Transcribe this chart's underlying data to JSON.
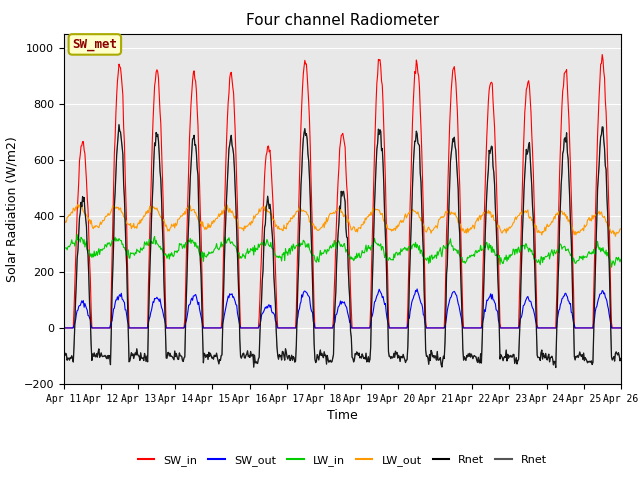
{
  "title": "Four channel Radiometer",
  "xlabel": "Time",
  "ylabel": "Solar Radiation (W/m2)",
  "ylim": [
    -200,
    1050
  ],
  "xlim": [
    0,
    15
  ],
  "background_color": "#e8e8e8",
  "annotation_text": "SW_met",
  "annotation_bg": "#ffffcc",
  "annotation_edge": "#aaaa00",
  "tick_labels": [
    "Apr 11",
    "Apr 12",
    "Apr 13",
    "Apr 14",
    "Apr 15",
    "Apr 16",
    "Apr 17",
    "Apr 18",
    "Apr 19",
    "Apr 20",
    "Apr 21",
    "Apr 22",
    "Apr 23",
    "Apr 24",
    "Apr 25",
    "Apr 26"
  ],
  "colors": {
    "SW_in": "#ff0000",
    "SW_out": "#0000ff",
    "LW_in": "#00cc00",
    "LW_out": "#ff9900",
    "Rnet_black": "#000000",
    "Rnet_dark": "#555555"
  },
  "peaks_swin": [
    670,
    940,
    920,
    910,
    910,
    650,
    960,
    700,
    960,
    950,
    930,
    880,
    880,
    920,
    960
  ],
  "peaks_swout": [
    90,
    120,
    110,
    115,
    120,
    80,
    130,
    90,
    130,
    130,
    125,
    115,
    105,
    120,
    130
  ],
  "lw_in_base": 280,
  "lw_out_base": 390,
  "n_days": 15,
  "points_per_day": 48
}
